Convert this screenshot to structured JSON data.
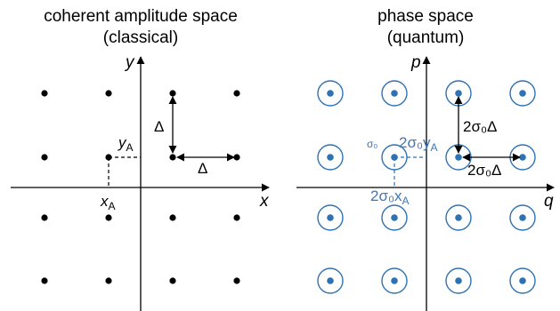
{
  "colors": {
    "classical": "#000000",
    "quantum": "#2f72b3",
    "quantum_label": "#3f76b3"
  },
  "left_panel": {
    "title_line1": "coherent amplitude space",
    "title_line2": "(classical)",
    "x_axis_label": "x",
    "y_axis_label": "y",
    "delta_vertical": "Δ",
    "delta_horizontal": "Δ",
    "point_x_label": "x",
    "point_x_sub": "A",
    "point_y_label": "y",
    "point_y_sub": "A",
    "grid": {
      "columns": 4,
      "rows": 4
    }
  },
  "right_panel": {
    "title_line1": "phase space",
    "title_line2": "(quantum)",
    "x_axis_label": "q",
    "y_axis_label": "p",
    "spacing_vertical": "2σ₀Δ",
    "spacing_horizontal": "2σ₀Δ",
    "sigma_label": "σ₀",
    "point_x_label": "2σ₀x",
    "point_x_sub": "A",
    "point_y_label": "2σ₀y",
    "point_y_sub": "A",
    "grid": {
      "columns": 4,
      "rows": 4
    }
  }
}
